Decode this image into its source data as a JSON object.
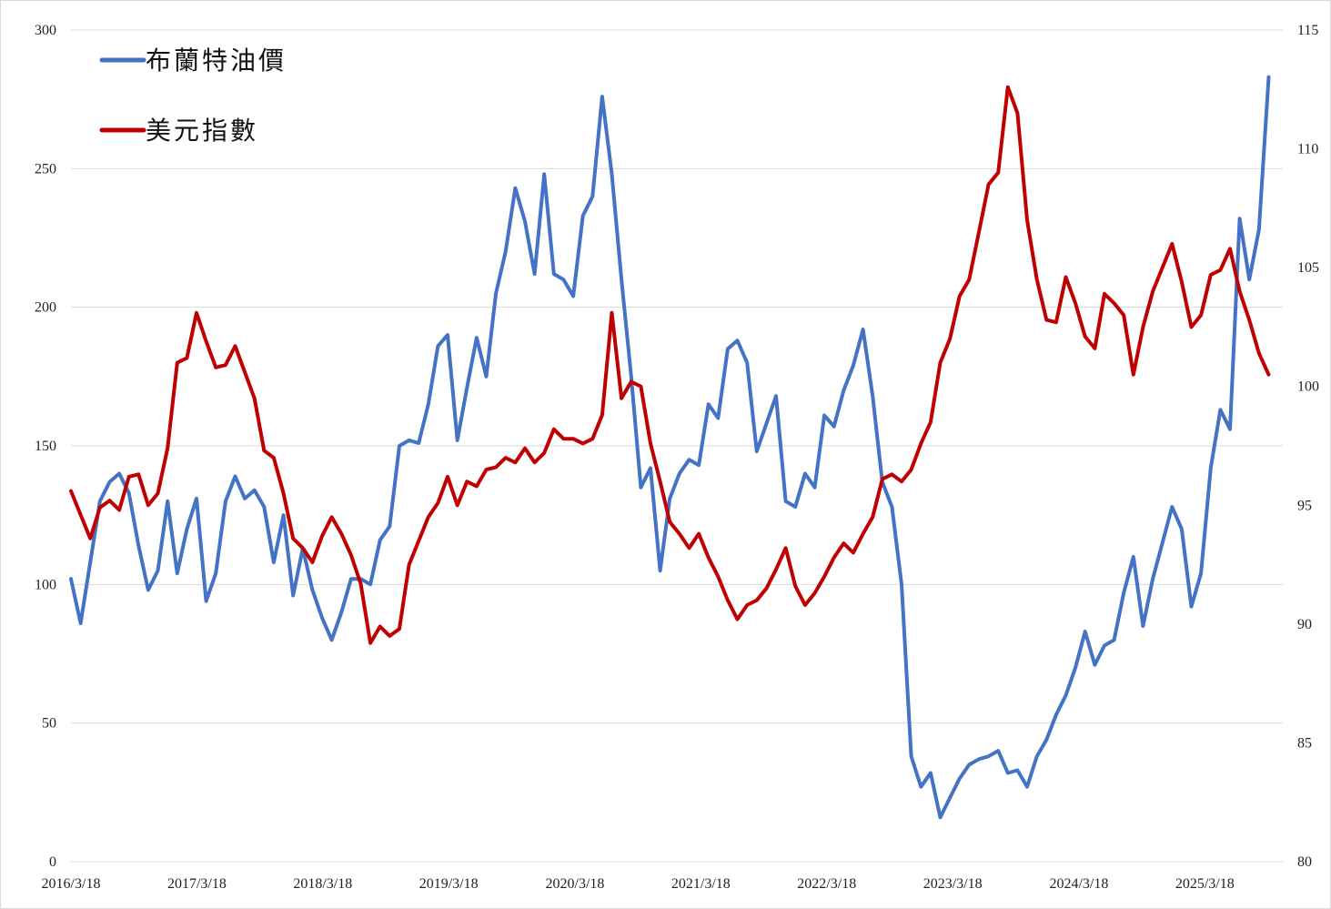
{
  "chart_data": {
    "type": "line",
    "x_ticks": [
      "2016/3/18",
      "2017/3/18",
      "2018/3/18",
      "2019/3/18",
      "2020/3/18",
      "2021/3/18",
      "2022/3/18",
      "2023/3/18",
      "2024/3/18",
      "2025/3/18"
    ],
    "y_left": {
      "ylim": [
        0,
        300
      ],
      "ticks": [
        "0",
        "50",
        "100",
        "150",
        "200",
        "250",
        "300"
      ]
    },
    "y_right": {
      "ylim": [
        80,
        115
      ],
      "ticks": [
        "80",
        "85",
        "90",
        "95",
        "100",
        "105",
        "110",
        "115"
      ]
    },
    "grid": true,
    "legend_placement": "top-left",
    "series": [
      {
        "name": "布蘭特油價",
        "axis": "left",
        "color": "#4472C4",
        "points": [
          [
            "2016-03-18",
            102
          ],
          [
            "2016-04-15",
            86
          ],
          [
            "2016-05-13",
            108
          ],
          [
            "2016-06-10",
            130
          ],
          [
            "2016-07-08",
            137
          ],
          [
            "2016-08-05",
            140
          ],
          [
            "2016-09-02",
            133
          ],
          [
            "2016-09-30",
            114
          ],
          [
            "2016-10-28",
            98
          ],
          [
            "2016-11-25",
            105
          ],
          [
            "2016-12-23",
            130
          ],
          [
            "2017-01-20",
            104
          ],
          [
            "2017-02-17",
            120
          ],
          [
            "2017-03-17",
            131
          ],
          [
            "2017-04-14",
            94
          ],
          [
            "2017-05-12",
            104
          ],
          [
            "2017-06-09",
            130
          ],
          [
            "2017-07-07",
            139
          ],
          [
            "2017-08-04",
            131
          ],
          [
            "2017-09-01",
            134
          ],
          [
            "2017-09-29",
            128
          ],
          [
            "2017-10-27",
            108
          ],
          [
            "2017-11-24",
            125
          ],
          [
            "2017-12-22",
            96
          ],
          [
            "2018-01-19",
            113
          ],
          [
            "2018-02-16",
            98
          ],
          [
            "2018-03-16",
            88
          ],
          [
            "2018-04-13",
            80
          ],
          [
            "2018-05-11",
            90
          ],
          [
            "2018-06-08",
            102
          ],
          [
            "2018-07-06",
            102
          ],
          [
            "2018-08-03",
            100
          ],
          [
            "2018-08-31",
            116
          ],
          [
            "2018-09-28",
            121
          ],
          [
            "2018-10-26",
            150
          ],
          [
            "2018-11-23",
            152
          ],
          [
            "2018-12-21",
            151
          ],
          [
            "2019-01-18",
            165
          ],
          [
            "2019-02-15",
            186
          ],
          [
            "2019-03-15",
            190
          ],
          [
            "2019-04-12",
            152
          ],
          [
            "2019-05-10",
            171
          ],
          [
            "2019-06-07",
            189
          ],
          [
            "2019-07-05",
            175
          ],
          [
            "2019-08-02",
            205
          ],
          [
            "2019-08-30",
            220
          ],
          [
            "2019-09-27",
            243
          ],
          [
            "2019-10-25",
            231
          ],
          [
            "2019-11-22",
            212
          ],
          [
            "2019-12-20",
            248
          ],
          [
            "2020-01-17",
            212
          ],
          [
            "2020-02-14",
            210
          ],
          [
            "2020-03-13",
            204
          ],
          [
            "2020-04-10",
            233
          ],
          [
            "2020-05-08",
            240
          ],
          [
            "2020-06-05",
            276
          ],
          [
            "2020-07-03",
            248
          ],
          [
            "2020-07-31",
            210
          ],
          [
            "2020-08-28",
            175
          ],
          [
            "2020-09-25",
            135
          ],
          [
            "2020-10-23",
            142
          ],
          [
            "2020-11-20",
            105
          ],
          [
            "2020-12-18",
            131
          ],
          [
            "2021-01-15",
            140
          ],
          [
            "2021-02-12",
            145
          ],
          [
            "2021-03-12",
            143
          ],
          [
            "2021-04-09",
            165
          ],
          [
            "2021-05-07",
            160
          ],
          [
            "2021-06-04",
            185
          ],
          [
            "2021-07-02",
            188
          ],
          [
            "2021-07-30",
            180
          ],
          [
            "2021-08-27",
            148
          ],
          [
            "2021-09-24",
            158
          ],
          [
            "2021-10-22",
            168
          ],
          [
            "2021-11-19",
            130
          ],
          [
            "2021-12-17",
            128
          ],
          [
            "2022-01-14",
            140
          ],
          [
            "2022-02-11",
            135
          ],
          [
            "2022-03-11",
            161
          ],
          [
            "2022-04-08",
            157
          ],
          [
            "2022-05-06",
            170
          ],
          [
            "2022-06-03",
            179
          ],
          [
            "2022-07-01",
            192
          ],
          [
            "2022-07-29",
            168
          ],
          [
            "2022-08-26",
            137
          ],
          [
            "2022-09-23",
            128
          ],
          [
            "2022-10-21",
            100
          ],
          [
            "2022-11-18",
            38
          ],
          [
            "2022-12-16",
            27
          ],
          [
            "2023-01-13",
            32
          ],
          [
            "2023-02-10",
            16
          ],
          [
            "2023-03-10",
            23
          ],
          [
            "2023-04-07",
            30
          ],
          [
            "2023-05-05",
            35
          ],
          [
            "2023-06-02",
            37
          ],
          [
            "2023-06-30",
            38
          ],
          [
            "2023-07-28",
            40
          ],
          [
            "2023-08-25",
            32
          ],
          [
            "2023-09-22",
            33
          ],
          [
            "2023-10-20",
            27
          ],
          [
            "2023-11-17",
            38
          ],
          [
            "2023-12-15",
            44
          ],
          [
            "2024-01-12",
            53
          ],
          [
            "2024-02-09",
            60
          ],
          [
            "2024-03-08",
            70
          ],
          [
            "2024-04-05",
            83
          ],
          [
            "2024-05-03",
            71
          ],
          [
            "2024-05-31",
            78
          ],
          [
            "2024-06-28",
            80
          ],
          [
            "2024-07-26",
            97
          ],
          [
            "2024-08-23",
            110
          ],
          [
            "2024-09-20",
            85
          ],
          [
            "2024-10-18",
            102
          ],
          [
            "2024-11-15",
            115
          ],
          [
            "2024-12-13",
            128
          ],
          [
            "2025-01-10",
            120
          ],
          [
            "2025-02-07",
            92
          ],
          [
            "2025-03-07",
            104
          ],
          [
            "2025-04-04",
            142
          ],
          [
            "2025-05-02",
            163
          ],
          [
            "2025-05-30",
            156
          ],
          [
            "2025-06-27",
            232
          ],
          [
            "2025-07-25",
            210
          ],
          [
            "2025-08-22",
            228
          ],
          [
            "2025-09-19",
            283
          ]
        ]
      },
      {
        "name": "美元指數",
        "axis": "right",
        "color": "#C00000",
        "points": [
          [
            "2016-03-18",
            95.6
          ],
          [
            "2016-04-15",
            94.6
          ],
          [
            "2016-05-13",
            93.6
          ],
          [
            "2016-06-10",
            94.9
          ],
          [
            "2016-07-08",
            95.2
          ],
          [
            "2016-08-05",
            94.8
          ],
          [
            "2016-09-02",
            96.2
          ],
          [
            "2016-09-30",
            96.3
          ],
          [
            "2016-10-28",
            95.0
          ],
          [
            "2016-11-25",
            95.5
          ],
          [
            "2016-12-23",
            97.4
          ],
          [
            "2017-01-20",
            101.0
          ],
          [
            "2017-02-17",
            101.2
          ],
          [
            "2017-03-17",
            103.1
          ],
          [
            "2017-04-14",
            101.9
          ],
          [
            "2017-05-12",
            100.8
          ],
          [
            "2017-06-09",
            100.9
          ],
          [
            "2017-07-07",
            101.7
          ],
          [
            "2017-08-04",
            100.6
          ],
          [
            "2017-09-01",
            99.5
          ],
          [
            "2017-09-29",
            97.3
          ],
          [
            "2017-10-27",
            97.0
          ],
          [
            "2017-11-24",
            95.5
          ],
          [
            "2017-12-22",
            93.6
          ],
          [
            "2018-01-19",
            93.2
          ],
          [
            "2018-02-16",
            92.6
          ],
          [
            "2018-03-16",
            93.7
          ],
          [
            "2018-04-13",
            94.5
          ],
          [
            "2018-05-11",
            93.8
          ],
          [
            "2018-06-08",
            92.9
          ],
          [
            "2018-07-06",
            91.7
          ],
          [
            "2018-08-03",
            89.2
          ],
          [
            "2018-08-31",
            89.9
          ],
          [
            "2018-09-28",
            89.5
          ],
          [
            "2018-10-26",
            89.8
          ],
          [
            "2018-11-23",
            92.5
          ],
          [
            "2018-12-21",
            93.5
          ],
          [
            "2019-01-18",
            94.5
          ],
          [
            "2019-02-15",
            95.1
          ],
          [
            "2019-03-15",
            96.2
          ],
          [
            "2019-04-12",
            95.0
          ],
          [
            "2019-05-10",
            96.0
          ],
          [
            "2019-06-07",
            95.8
          ],
          [
            "2019-07-05",
            96.5
          ],
          [
            "2019-08-02",
            96.6
          ],
          [
            "2019-08-30",
            97.0
          ],
          [
            "2019-09-27",
            96.8
          ],
          [
            "2019-10-25",
            97.4
          ],
          [
            "2019-11-22",
            96.8
          ],
          [
            "2019-12-20",
            97.2
          ],
          [
            "2020-01-17",
            98.2
          ],
          [
            "2020-02-14",
            97.8
          ],
          [
            "2020-03-13",
            97.8
          ],
          [
            "2020-04-10",
            97.6
          ],
          [
            "2020-05-08",
            97.8
          ],
          [
            "2020-06-05",
            98.8
          ],
          [
            "2020-07-03",
            103.1
          ],
          [
            "2020-07-31",
            99.5
          ],
          [
            "2020-08-28",
            100.2
          ],
          [
            "2020-09-25",
            100.0
          ],
          [
            "2020-10-23",
            97.6
          ],
          [
            "2020-11-20",
            96.0
          ],
          [
            "2020-12-18",
            94.3
          ],
          [
            "2021-01-15",
            93.8
          ],
          [
            "2021-02-12",
            93.2
          ],
          [
            "2021-03-12",
            93.8
          ],
          [
            "2021-04-09",
            92.8
          ],
          [
            "2021-05-07",
            92.0
          ],
          [
            "2021-06-04",
            91.0
          ],
          [
            "2021-07-02",
            90.2
          ],
          [
            "2021-07-30",
            90.8
          ],
          [
            "2021-08-27",
            91.0
          ],
          [
            "2021-09-24",
            91.5
          ],
          [
            "2021-10-22",
            92.3
          ],
          [
            "2021-11-19",
            93.2
          ],
          [
            "2021-12-17",
            91.6
          ],
          [
            "2022-01-14",
            90.8
          ],
          [
            "2022-02-11",
            91.3
          ],
          [
            "2022-03-11",
            92.0
          ],
          [
            "2022-04-08",
            92.8
          ],
          [
            "2022-05-06",
            93.4
          ],
          [
            "2022-06-03",
            93.0
          ],
          [
            "2022-07-01",
            93.8
          ],
          [
            "2022-07-29",
            94.5
          ],
          [
            "2022-08-26",
            96.1
          ],
          [
            "2022-09-23",
            96.3
          ],
          [
            "2022-10-21",
            96.0
          ],
          [
            "2022-11-18",
            96.5
          ],
          [
            "2022-12-16",
            97.6
          ],
          [
            "2023-01-13",
            98.5
          ],
          [
            "2023-02-10",
            101.0
          ],
          [
            "2023-03-10",
            102.0
          ],
          [
            "2023-04-07",
            103.8
          ],
          [
            "2023-05-05",
            104.5
          ],
          [
            "2023-06-02",
            106.5
          ],
          [
            "2023-06-30",
            108.5
          ],
          [
            "2023-07-28",
            109.0
          ],
          [
            "2023-08-25",
            112.6
          ],
          [
            "2023-09-22",
            111.5
          ],
          [
            "2023-10-20",
            107.0
          ],
          [
            "2023-11-17",
            104.5
          ],
          [
            "2023-12-15",
            102.8
          ],
          [
            "2024-01-12",
            102.7
          ],
          [
            "2024-02-09",
            104.6
          ],
          [
            "2024-03-08",
            103.5
          ],
          [
            "2024-04-05",
            102.1
          ],
          [
            "2024-05-03",
            101.6
          ],
          [
            "2024-05-31",
            103.9
          ],
          [
            "2024-06-28",
            103.5
          ],
          [
            "2024-07-26",
            103.0
          ],
          [
            "2024-08-23",
            100.5
          ],
          [
            "2024-09-20",
            102.5
          ],
          [
            "2024-10-18",
            104.0
          ],
          [
            "2024-11-15",
            105.0
          ],
          [
            "2024-12-13",
            106.0
          ],
          [
            "2025-01-10",
            104.4
          ],
          [
            "2025-02-07",
            102.5
          ],
          [
            "2025-03-07",
            103.0
          ],
          [
            "2025-04-04",
            104.7
          ],
          [
            "2025-05-02",
            104.9
          ],
          [
            "2025-05-30",
            105.8
          ],
          [
            "2025-06-27",
            104.0
          ],
          [
            "2025-07-25",
            102.8
          ],
          [
            "2025-08-22",
            101.4
          ],
          [
            "2025-09-19",
            100.5
          ]
        ]
      }
    ]
  }
}
